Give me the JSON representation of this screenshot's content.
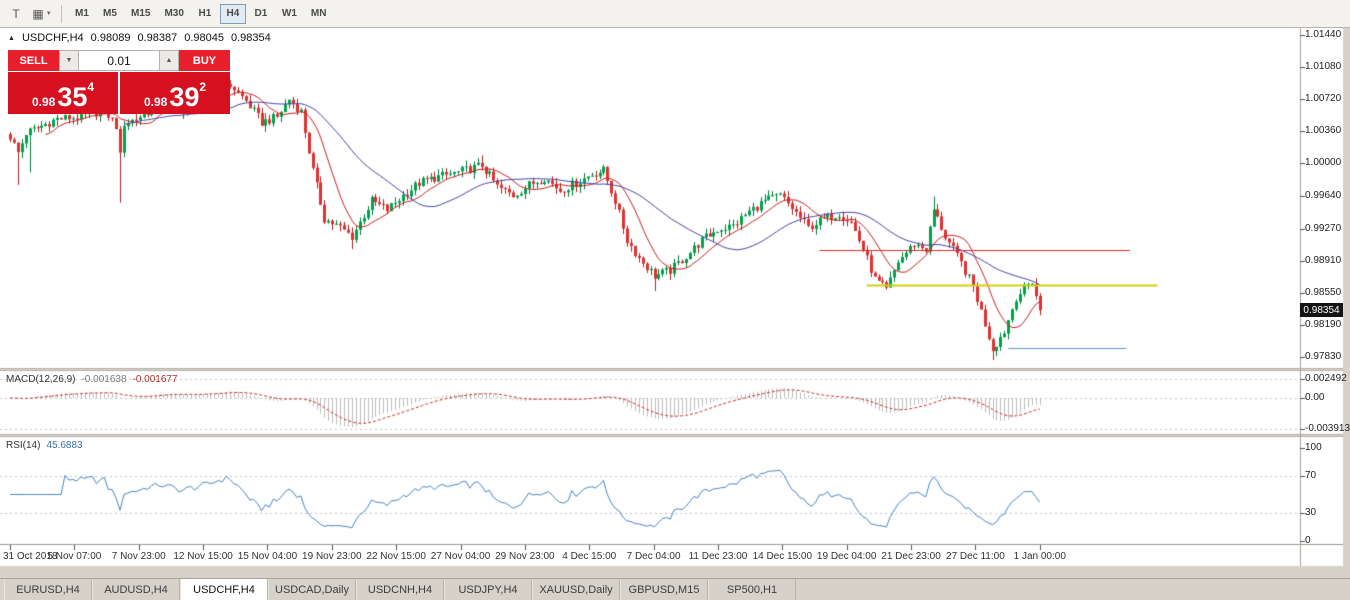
{
  "icons": {
    "collapse_marker": "▲",
    "dropdown_arrow": "▼",
    "up_arrow": "▲",
    "text_tool": "T",
    "chart_style": "▦"
  },
  "toolbar": {
    "timeframes": [
      {
        "label": "M1",
        "active": false
      },
      {
        "label": "M5",
        "active": false
      },
      {
        "label": "M15",
        "active": false
      },
      {
        "label": "M30",
        "active": false
      },
      {
        "label": "H1",
        "active": false
      },
      {
        "label": "H4",
        "active": true
      },
      {
        "label": "D1",
        "active": false
      },
      {
        "label": "W1",
        "active": false
      },
      {
        "label": "MN",
        "active": false
      }
    ]
  },
  "chart": {
    "title": {
      "symbol": "USDCHF,H4",
      "ohlc": [
        "0.98089",
        "0.98387",
        "0.98045",
        "0.98354"
      ]
    },
    "current_price": "0.98354",
    "trade_panel": {
      "sell_label": "SELL",
      "buy_label": "BUY",
      "lot": "0.01",
      "sell_price_prefix": "0.98",
      "sell_price_big": "35",
      "sell_price_sup": "4",
      "buy_price_prefix": "0.98",
      "buy_price_big": "39",
      "buy_price_sup": "2"
    },
    "price_axis_ticks": [
      "1.01440",
      "1.01080",
      "1.00720",
      "1.00360",
      "1.00000",
      "0.99640",
      "0.99270",
      "0.98910",
      "0.98550",
      "0.98190",
      "0.97830"
    ]
  },
  "macd_panel": {
    "name": "MACD(12,26,9)",
    "values": [
      "-0.001638",
      "-0.001677"
    ],
    "axis_ticks": [
      "0.002492",
      "0.00",
      "-0.003913"
    ]
  },
  "rsi_panel": {
    "name": "RSI(14)",
    "value": "45.6883",
    "axis_ticks": [
      "100",
      "70",
      "30",
      "0"
    ]
  },
  "time_axis": [
    "31 Oct 2018",
    "5 Nov 07:00",
    "7 Nov 23:00",
    "12 Nov 15:00",
    "15 Nov 04:00",
    "19 Nov 23:00",
    "22 Nov 15:00",
    "27 Nov 04:00",
    "29 Nov 23:00",
    "4 Dec 15:00",
    "7 Dec 04:00",
    "11 Dec 23:00",
    "14 Dec 15:00",
    "19 Dec 04:00",
    "21 Dec 23:00",
    "27 Dec 11:00",
    "1 Jan 00:00"
  ],
  "bottom_tabs": [
    {
      "label": "EURUSD,H4",
      "active": false
    },
    {
      "label": "AUDUSD,H4",
      "active": false
    },
    {
      "label": "USDCHF,H4",
      "active": true
    },
    {
      "label": "USDCAD,Daily",
      "active": false
    },
    {
      "label": "USDCNH,H4",
      "active": false
    },
    {
      "label": "USDJPY,H4",
      "active": false
    },
    {
      "label": "XAUUSD,Daily",
      "active": false
    },
    {
      "label": "GBPUSD,M15",
      "active": false
    },
    {
      "label": "SP500,H1",
      "active": false
    }
  ],
  "chart_data": {
    "type": "candlestick",
    "symbol": "USDCHF",
    "timeframe": "H4",
    "bars": 263,
    "price_scale": {
      "max": 1.0144,
      "min": 0.9783
    },
    "last_close": 0.98354,
    "price_anchors": [
      [
        0,
        1.003
      ],
      [
        2,
        1.0012
      ],
      [
        4,
        1.0034
      ],
      [
        8,
        1.0042
      ],
      [
        12,
        1.005
      ],
      [
        18,
        1.0052
      ],
      [
        24,
        1.006
      ],
      [
        27,
        1.0042
      ],
      [
        28,
        1.0008
      ],
      [
        29,
        1.0045
      ],
      [
        32,
        1.005
      ],
      [
        38,
        1.0066
      ],
      [
        44,
        1.006
      ],
      [
        50,
        1.0072
      ],
      [
        56,
        1.0088
      ],
      [
        60,
        1.007
      ],
      [
        64,
        1.0046
      ],
      [
        68,
        1.0052
      ],
      [
        71,
        1.0072
      ],
      [
        74,
        1.0058
      ],
      [
        77,
        0.9992
      ],
      [
        80,
        0.9938
      ],
      [
        84,
        0.9928
      ],
      [
        87,
        0.9918
      ],
      [
        92,
        0.9958
      ],
      [
        96,
        0.9948
      ],
      [
        100,
        0.9964
      ],
      [
        104,
        0.9978
      ],
      [
        108,
        0.9984
      ],
      [
        114,
        0.999
      ],
      [
        120,
        0.9998
      ],
      [
        124,
        0.9974
      ],
      [
        128,
        0.9964
      ],
      [
        132,
        0.9976
      ],
      [
        136,
        0.9984
      ],
      [
        140,
        0.997
      ],
      [
        144,
        0.9978
      ],
      [
        148,
        0.9988
      ],
      [
        151,
        0.9992
      ],
      [
        154,
        0.9958
      ],
      [
        157,
        0.9914
      ],
      [
        160,
        0.9894
      ],
      [
        164,
        0.9874
      ],
      [
        168,
        0.988
      ],
      [
        172,
        0.9896
      ],
      [
        176,
        0.9914
      ],
      [
        180,
        0.9926
      ],
      [
        184,
        0.993
      ],
      [
        188,
        0.9946
      ],
      [
        192,
        0.9958
      ],
      [
        196,
        0.9964
      ],
      [
        199,
        0.995
      ],
      [
        203,
        0.9928
      ],
      [
        207,
        0.9938
      ],
      [
        211,
        0.9944
      ],
      [
        214,
        0.9934
      ],
      [
        217,
        0.9904
      ],
      [
        220,
        0.987
      ],
      [
        223,
        0.9858
      ],
      [
        226,
        0.989
      ],
      [
        230,
        0.991
      ],
      [
        233,
        0.9904
      ],
      [
        235,
        0.9948
      ],
      [
        238,
        0.9918
      ],
      [
        242,
        0.9888
      ],
      [
        245,
        0.9862
      ],
      [
        248,
        0.982
      ],
      [
        250,
        0.9792
      ],
      [
        253,
        0.9812
      ],
      [
        256,
        0.985
      ],
      [
        259,
        0.9864
      ],
      [
        260,
        0.9868
      ],
      [
        261,
        0.9852
      ],
      [
        262,
        0.98354
      ]
    ],
    "wick_overrides": [
      {
        "bar": 2,
        "low": 0.9976
      },
      {
        "bar": 5,
        "low": 0.999
      },
      {
        "bar": 28,
        "low": 0.9956
      },
      {
        "bar": 87,
        "low": 0.9904
      },
      {
        "bar": 120,
        "high": 1.0009
      },
      {
        "bar": 164,
        "low": 0.9857
      },
      {
        "bar": 235,
        "high": 0.9963
      },
      {
        "bar": 250,
        "low": 0.97795
      }
    ],
    "colors": {
      "up": "#00a24c",
      "down": "#e03131",
      "up_wick": "#00813c",
      "down_wick": "#b32222",
      "ma_fast": "#cc2222",
      "ma_slow": "#4646a8",
      "macd_hist": "#bdbdbd",
      "macd_signal": "#cc3333",
      "rsi": "#4a86c8",
      "level_red": "#e82c2c",
      "level_yellow": "#cfd20a",
      "level_blue": "#5a9bd5"
    },
    "moving_averages": [
      {
        "period": 10
      },
      {
        "period": 30
      }
    ],
    "macd": {
      "fast": 12,
      "slow": 26,
      "signal": 9,
      "axis_max": 0.002492,
      "axis_min": -0.003913,
      "current": [
        -0.001638,
        -0.001677
      ]
    },
    "rsi": {
      "period": 14,
      "levels": [
        70,
        30
      ],
      "current": 45.6883
    },
    "levels": [
      {
        "price": 0.9903,
        "from_bar": 206,
        "to_bar": 285,
        "color": "#e82c2c",
        "width": 1
      },
      {
        "price": 0.9864,
        "from_bar": 218,
        "to_bar": 292,
        "color": "#cfd20a",
        "width": 2
      },
      {
        "price": 0.9793,
        "from_bar": 254,
        "to_bar": 284,
        "color": "#5a9bd5",
        "width": 1
      }
    ]
  }
}
